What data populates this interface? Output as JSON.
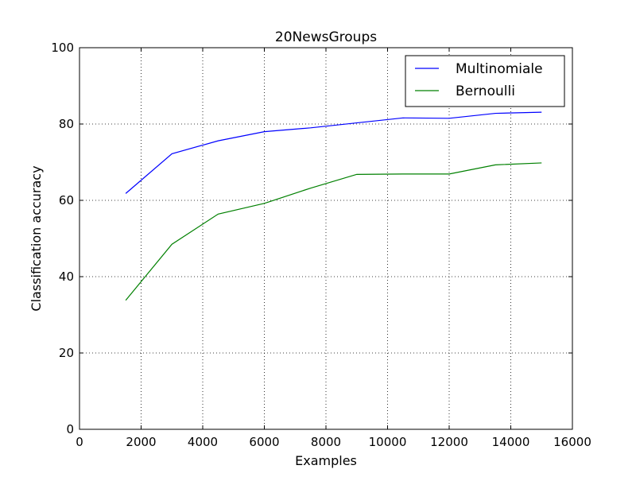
{
  "chart_data": {
    "type": "line",
    "title": "20NewsGroups",
    "xlabel": "Examples",
    "ylabel": "Classification accuracy",
    "xlim": [
      0,
      16000
    ],
    "ylim": [
      0,
      100
    ],
    "xticks": [
      0,
      2000,
      4000,
      6000,
      8000,
      10000,
      12000,
      14000,
      16000
    ],
    "yticks": [
      0,
      20,
      40,
      60,
      80,
      100
    ],
    "grid": true,
    "legend_position": "top-right",
    "x": [
      1500,
      3000,
      4500,
      6000,
      7500,
      9000,
      10500,
      12000,
      13500,
      15000
    ],
    "series": [
      {
        "name": "Multinomiale",
        "color": "#0000ff",
        "values": [
          61.8,
          72.2,
          75.6,
          78.0,
          79.0,
          80.3,
          81.6,
          81.5,
          82.8,
          83.1
        ]
      },
      {
        "name": "Bernoulli",
        "color": "#008000",
        "values": [
          33.8,
          48.5,
          56.4,
          59.2,
          63.2,
          66.8,
          66.9,
          66.9,
          69.3,
          69.8
        ]
      }
    ]
  }
}
